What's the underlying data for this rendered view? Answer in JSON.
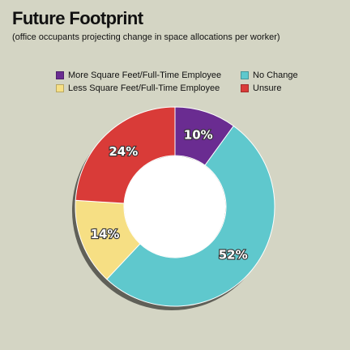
{
  "chart_data": {
    "type": "pie",
    "donut": true,
    "title": "Future Footprint",
    "subtitle": "(office occupants projecting change in space allocations per worker)",
    "categories": [
      "More Square Feet/Full-Time Employee",
      "No Change",
      "Less Square Feet/Full-Time Employee",
      "Unsure"
    ],
    "values": [
      10,
      52,
      14,
      24
    ],
    "value_labels": [
      "10%",
      "52%",
      "14%",
      "24%"
    ],
    "colors": [
      "#6a2c91",
      "#5fc8cd",
      "#f6df84",
      "#d93b38"
    ],
    "legend_placement": "top"
  }
}
